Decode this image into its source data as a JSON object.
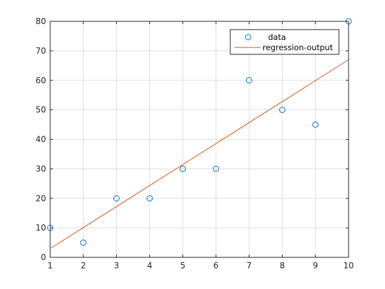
{
  "chart_data": {
    "type": "scatter",
    "title": "",
    "xlabel": "",
    "ylabel": "",
    "xlim": [
      1,
      10
    ],
    "ylim": [
      0,
      80
    ],
    "xticks": [
      1,
      2,
      3,
      4,
      5,
      6,
      7,
      8,
      9,
      10
    ],
    "yticks": [
      0,
      10,
      20,
      30,
      40,
      50,
      60,
      70,
      80
    ],
    "grid": true,
    "legend_position": "top-right",
    "series": [
      {
        "name": "data",
        "type": "scatter",
        "marker": "circle-open",
        "color": "#0072BD",
        "x": [
          1,
          2,
          3,
          4,
          5,
          6,
          7,
          8,
          9,
          10
        ],
        "y": [
          10,
          5,
          20,
          20,
          30,
          30,
          60,
          50,
          45,
          80
        ]
      },
      {
        "name": "regression-output",
        "type": "line",
        "color": "#D95319",
        "x": [
          1,
          10
        ],
        "y": [
          3,
          67
        ]
      }
    ]
  }
}
